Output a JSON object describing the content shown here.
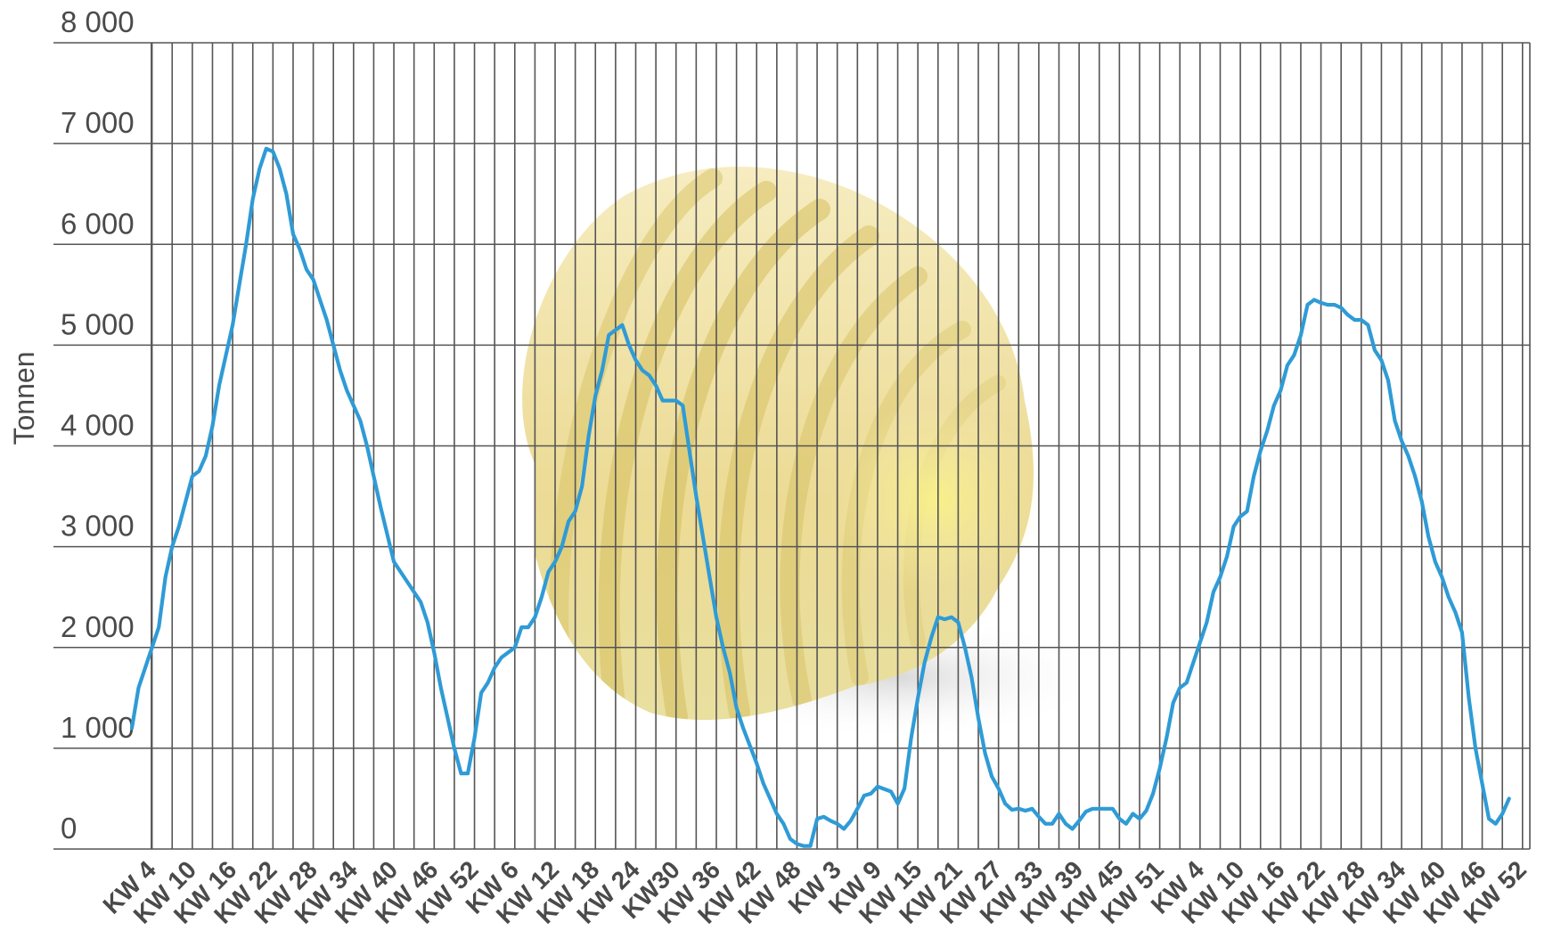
{
  "chart_data": {
    "type": "line",
    "title": "",
    "ylabel": "Tonnen",
    "xlabel": "",
    "ylim": [
      0,
      8000
    ],
    "y_ticks": [
      {
        "value": 0,
        "label": "0"
      },
      {
        "value": 1000,
        "label": "1 000"
      },
      {
        "value": 2000,
        "label": "2 000"
      },
      {
        "value": 3000,
        "label": "3 000"
      },
      {
        "value": 4000,
        "label": "4 000"
      },
      {
        "value": 5000,
        "label": "5 000"
      },
      {
        "value": 6000,
        "label": "6 000"
      },
      {
        "value": 7000,
        "label": "7 000"
      },
      {
        "value": 8000,
        "label": "8 000"
      }
    ],
    "x_ticks": [
      {
        "week": 4,
        "label": "KW 4"
      },
      {
        "week": 10,
        "label": "KW 10"
      },
      {
        "week": 16,
        "label": "KW 16"
      },
      {
        "week": 22,
        "label": "KW 22"
      },
      {
        "week": 28,
        "label": "KW 28"
      },
      {
        "week": 34,
        "label": "KW 34"
      },
      {
        "week": 40,
        "label": "KW 40"
      },
      {
        "week": 46,
        "label": "KW 46"
      },
      {
        "week": 52,
        "label": "KW 52"
      },
      {
        "week": 58,
        "label": "KW 6"
      },
      {
        "week": 64,
        "label": "KW 12"
      },
      {
        "week": 70,
        "label": "KW 18"
      },
      {
        "week": 76,
        "label": "KW 24"
      },
      {
        "week": 82,
        "label": "KW30"
      },
      {
        "week": 88,
        "label": "KW 36"
      },
      {
        "week": 94,
        "label": "KW 42"
      },
      {
        "week": 100,
        "label": "KW 48"
      },
      {
        "week": 106,
        "label": "KW 3"
      },
      {
        "week": 112,
        "label": "KW 9"
      },
      {
        "week": 118,
        "label": "KW 15"
      },
      {
        "week": 124,
        "label": "KW 21"
      },
      {
        "week": 130,
        "label": "KW 27"
      },
      {
        "week": 136,
        "label": "KW 33"
      },
      {
        "week": 142,
        "label": "KW 39"
      },
      {
        "week": 148,
        "label": "KW 45"
      },
      {
        "week": 154,
        "label": "KW 51"
      },
      {
        "week": 160,
        "label": "KW 4"
      },
      {
        "week": 166,
        "label": "KW 10"
      },
      {
        "week": 172,
        "label": "KW 16"
      },
      {
        "week": 178,
        "label": "KW 22"
      },
      {
        "week": 184,
        "label": "KW 28"
      },
      {
        "week": 190,
        "label": "KW 34"
      },
      {
        "week": 196,
        "label": "KW 40"
      },
      {
        "week": 202,
        "label": "KW 46"
      },
      {
        "week": 208,
        "label": "KW 52"
      }
    ],
    "grid": true,
    "series": [
      {
        "color": "#2f9bd6",
        "points": [
          [
            1,
            1200
          ],
          [
            2,
            1600
          ],
          [
            4,
            2000
          ],
          [
            5,
            2200
          ],
          [
            6,
            2700
          ],
          [
            7,
            3000
          ],
          [
            8,
            3200
          ],
          [
            10,
            3700
          ],
          [
            11,
            3750
          ],
          [
            12,
            3900
          ],
          [
            13,
            4200
          ],
          [
            14,
            4600
          ],
          [
            16,
            5200
          ],
          [
            17,
            5600
          ],
          [
            18,
            6000
          ],
          [
            19,
            6450
          ],
          [
            20,
            6750
          ],
          [
            21,
            6950
          ],
          [
            22,
            6920
          ],
          [
            23,
            6750
          ],
          [
            24,
            6500
          ],
          [
            25,
            6100
          ],
          [
            26,
            5950
          ],
          [
            27,
            5750
          ],
          [
            28,
            5650
          ],
          [
            29,
            5450
          ],
          [
            30,
            5250
          ],
          [
            31,
            5000
          ],
          [
            32,
            4750
          ],
          [
            33,
            4550
          ],
          [
            34,
            4400
          ],
          [
            35,
            4250
          ],
          [
            36,
            4000
          ],
          [
            37,
            3700
          ],
          [
            38,
            3400
          ],
          [
            40,
            2850
          ],
          [
            41,
            2750
          ],
          [
            43,
            2550
          ],
          [
            44,
            2450
          ],
          [
            45,
            2250
          ],
          [
            46,
            1950
          ],
          [
            47,
            1600
          ],
          [
            48,
            1300
          ],
          [
            49,
            1000
          ],
          [
            50,
            750
          ],
          [
            51,
            750
          ],
          [
            52,
            1100
          ],
          [
            53,
            1550
          ],
          [
            54,
            1650
          ],
          [
            55,
            1800
          ],
          [
            56,
            1900
          ],
          [
            58,
            2000
          ],
          [
            59,
            2200
          ],
          [
            60,
            2200
          ],
          [
            61,
            2300
          ],
          [
            62,
            2500
          ],
          [
            63,
            2750
          ],
          [
            64,
            2850
          ],
          [
            65,
            3000
          ],
          [
            66,
            3250
          ],
          [
            67,
            3350
          ],
          [
            68,
            3600
          ],
          [
            69,
            4100
          ],
          [
            70,
            4500
          ],
          [
            71,
            4750
          ],
          [
            72,
            5100
          ],
          [
            74,
            5200
          ],
          [
            75,
            5000
          ],
          [
            76,
            4850
          ],
          [
            77,
            4750
          ],
          [
            78,
            4700
          ],
          [
            79,
            4600
          ],
          [
            80,
            4450
          ],
          [
            81,
            4450
          ],
          [
            82,
            4450
          ],
          [
            83,
            4400
          ],
          [
            84,
            3950
          ],
          [
            85,
            3500
          ],
          [
            86,
            3100
          ],
          [
            87,
            2700
          ],
          [
            88,
            2300
          ],
          [
            89,
            2000
          ],
          [
            90,
            1750
          ],
          [
            91,
            1400
          ],
          [
            92,
            1200
          ],
          [
            94,
            850
          ],
          [
            95,
            650
          ],
          [
            96,
            500
          ],
          [
            97,
            350
          ],
          [
            98,
            250
          ],
          [
            99,
            100
          ],
          [
            100,
            50
          ],
          [
            101,
            30
          ],
          [
            102,
            30
          ],
          [
            103,
            300
          ],
          [
            104,
            320
          ],
          [
            105,
            280
          ],
          [
            106,
            250
          ],
          [
            107,
            200
          ],
          [
            108,
            280
          ],
          [
            109,
            400
          ],
          [
            110,
            530
          ],
          [
            111,
            550
          ],
          [
            112,
            620
          ],
          [
            114,
            570
          ],
          [
            115,
            450
          ],
          [
            116,
            600
          ],
          [
            117,
            1100
          ],
          [
            118,
            1500
          ],
          [
            119,
            1850
          ],
          [
            120,
            2100
          ],
          [
            121,
            2300
          ],
          [
            122,
            2280
          ],
          [
            123,
            2300
          ],
          [
            124,
            2250
          ],
          [
            125,
            2000
          ],
          [
            126,
            1700
          ],
          [
            127,
            1300
          ],
          [
            128,
            950
          ],
          [
            129,
            720
          ],
          [
            130,
            600
          ],
          [
            131,
            450
          ],
          [
            132,
            390
          ],
          [
            133,
            400
          ],
          [
            134,
            380
          ],
          [
            135,
            400
          ],
          [
            136,
            320
          ],
          [
            137,
            250
          ],
          [
            138,
            250
          ],
          [
            139,
            350
          ],
          [
            140,
            250
          ],
          [
            141,
            200
          ],
          [
            142,
            280
          ],
          [
            143,
            370
          ],
          [
            144,
            400
          ],
          [
            145,
            400
          ],
          [
            146,
            400
          ],
          [
            147,
            400
          ],
          [
            148,
            300
          ],
          [
            149,
            250
          ],
          [
            150,
            350
          ],
          [
            151,
            300
          ],
          [
            152,
            380
          ],
          [
            153,
            550
          ],
          [
            154,
            800
          ],
          [
            155,
            1100
          ],
          [
            156,
            1450
          ],
          [
            157,
            1600
          ],
          [
            158,
            1650
          ],
          [
            159,
            1850
          ],
          [
            160,
            2050
          ],
          [
            161,
            2250
          ],
          [
            162,
            2550
          ],
          [
            163,
            2700
          ],
          [
            164,
            2900
          ],
          [
            165,
            3200
          ],
          [
            166,
            3300
          ],
          [
            167,
            3350
          ],
          [
            168,
            3700
          ],
          [
            169,
            3950
          ],
          [
            170,
            4150
          ],
          [
            171,
            4400
          ],
          [
            172,
            4550
          ],
          [
            173,
            4800
          ],
          [
            174,
            4900
          ],
          [
            175,
            5100
          ],
          [
            176,
            5400
          ],
          [
            177,
            5450
          ],
          [
            178,
            5420
          ],
          [
            179,
            5400
          ],
          [
            180,
            5400
          ],
          [
            181,
            5370
          ],
          [
            182,
            5300
          ],
          [
            183,
            5250
          ],
          [
            184,
            5250
          ],
          [
            185,
            5200
          ],
          [
            186,
            4950
          ],
          [
            187,
            4850
          ],
          [
            188,
            4650
          ],
          [
            189,
            4250
          ],
          [
            190,
            4050
          ],
          [
            191,
            3900
          ],
          [
            192,
            3700
          ],
          [
            193,
            3450
          ],
          [
            194,
            3100
          ],
          [
            195,
            2850
          ],
          [
            196,
            2700
          ],
          [
            197,
            2500
          ],
          [
            198,
            2350
          ],
          [
            199,
            2150
          ],
          [
            200,
            1500
          ],
          [
            201,
            1000
          ],
          [
            202,
            650
          ],
          [
            203,
            300
          ],
          [
            204,
            250
          ],
          [
            205,
            350
          ],
          [
            206,
            500
          ]
        ]
      }
    ]
  }
}
